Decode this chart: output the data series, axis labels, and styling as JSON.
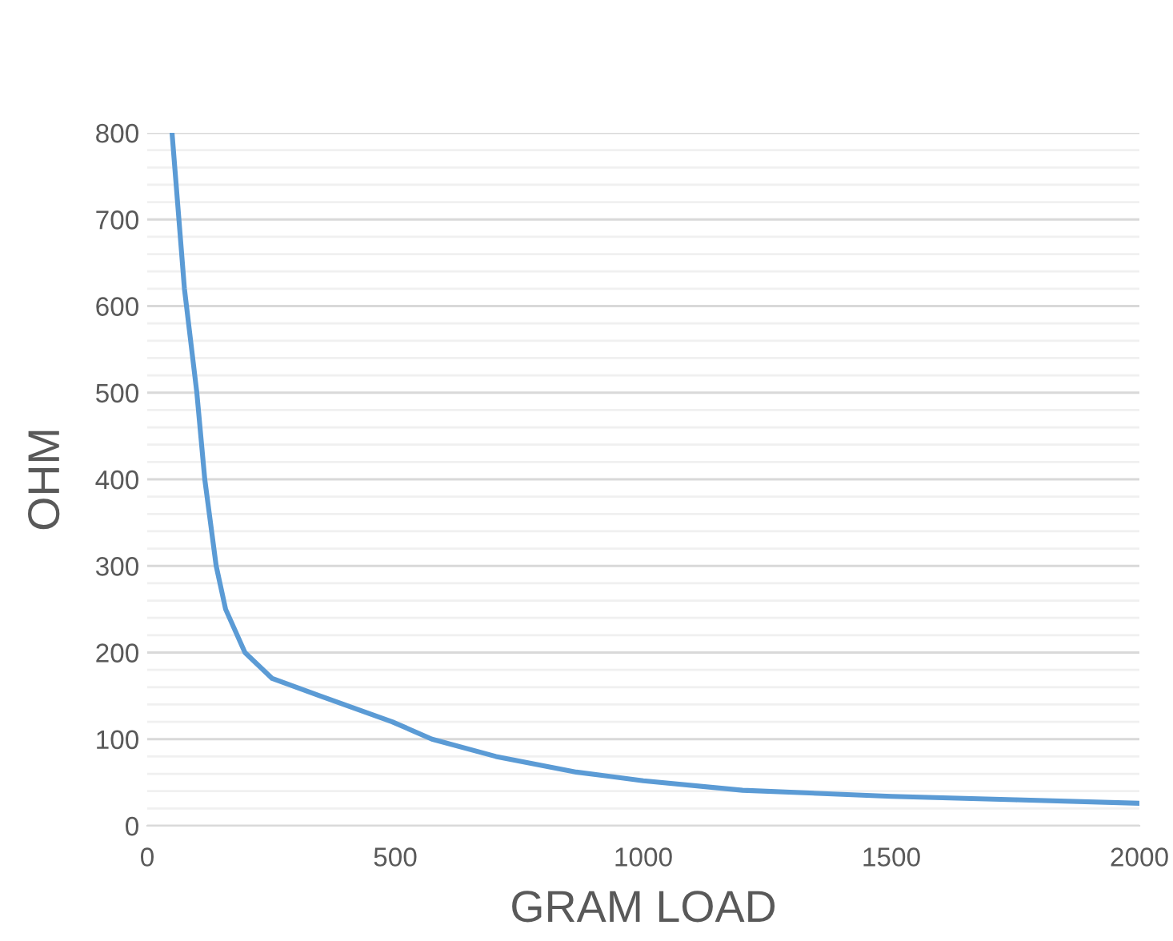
{
  "chart_data": {
    "type": "line",
    "xlabel": "GRAM LOAD",
    "ylabel": "OHM",
    "x": [
      50,
      75,
      100,
      116,
      139,
      158,
      197,
      252,
      348,
      494,
      574,
      703,
      865,
      1000,
      1200,
      1500,
      1750,
      2000
    ],
    "series": [
      {
        "color": "#5b9bd5",
        "values": [
          800,
          620,
          500,
          400,
          300,
          250,
          200,
          170,
          150,
          120,
          100,
          80,
          62,
          52,
          41,
          34,
          30,
          26
        ]
      }
    ],
    "xlim": [
      0,
      2000
    ],
    "xticks": [
      0,
      500,
      1000,
      1500,
      2000
    ],
    "ylim": [
      0,
      800
    ],
    "yticks": [
      0,
      {
        "value": 20,
        "label": null
      },
      {
        "value": 40,
        "label": null
      },
      {
        "value": 60,
        "label": null
      },
      {
        "value": 80,
        "label": null
      },
      100,
      {
        "value": 120,
        "label": null
      },
      {
        "value": 140,
        "label": null
      },
      {
        "value": 160,
        "label": null
      },
      {
        "value": 180,
        "label": null
      },
      200,
      {
        "value": 220,
        "label": null
      },
      {
        "value": 240,
        "label": null
      },
      {
        "value": 260,
        "label": null
      },
      {
        "value": 280,
        "label": null
      },
      300,
      {
        "value": 320,
        "label": null
      },
      {
        "value": 340,
        "label": null
      },
      {
        "value": 360,
        "label": null
      },
      {
        "value": 380,
        "label": null
      },
      400,
      {
        "value": 420,
        "label": null
      },
      {
        "value": 440,
        "label": null
      },
      {
        "value": 460,
        "label": null
      },
      {
        "value": 480,
        "label": null
      },
      500,
      {
        "value": 520,
        "label": null
      },
      {
        "value": 540,
        "label": null
      },
      {
        "value": 560,
        "label": null
      },
      {
        "value": 580,
        "label": null
      },
      600,
      {
        "value": 620,
        "label": null
      },
      {
        "value": 640,
        "label": null
      },
      {
        "value": 660,
        "label": null
      },
      {
        "value": 680,
        "label": null
      },
      700,
      {
        "value": 720,
        "label": null
      },
      {
        "value": 740,
        "label": null
      },
      {
        "value": 760,
        "label": null
      },
      {
        "value": 780,
        "label": null
      },
      800
    ],
    "grid": "y",
    "line_style": "solid"
  }
}
